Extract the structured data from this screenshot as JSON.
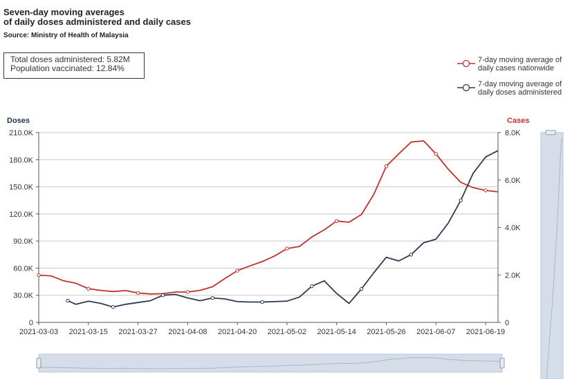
{
  "title_line1": "Seven-day moving averages",
  "title_line2": "of daily doses administered and daily cases",
  "source": "Source: Ministry of Health of Malaysia",
  "stats": {
    "total_doses": "Total doses administered: 5.82M",
    "population_vaccinated": "Population vaccinated: 12.84%"
  },
  "colors": {
    "cases": "#c0312b",
    "doses": "#2b3a4f",
    "grid": "#c8c8c8",
    "slider": "#d5dde8"
  },
  "chart_data": {
    "type": "line",
    "left_axis": {
      "label": "Doses",
      "ticks": [
        "0",
        "30.0K",
        "60.0K",
        "90.0K",
        "120.0K",
        "150.0K",
        "180.0K",
        "210.0K"
      ],
      "range": [
        0,
        210000
      ]
    },
    "right_axis": {
      "label": "Cases",
      "ticks": [
        "0",
        "2.0K",
        "4.0K",
        "6.0K",
        "8.0K"
      ],
      "range": [
        0,
        8000
      ]
    },
    "x_ticks": [
      "2021-03-03",
      "2021-03-15",
      "2021-03-27",
      "2021-04-08",
      "2021-04-20",
      "2021-05-02",
      "2021-05-14",
      "2021-05-26",
      "2021-06-07",
      "2021-06-19"
    ],
    "x_range": [
      "2021-03-03",
      "2021-06-22"
    ],
    "legend": {
      "position": "top-right",
      "entries": [
        "7-day moving average of daily cases nationwide",
        "7-day moving average of daily doses administered"
      ]
    },
    "grid": true,
    "series": [
      {
        "name": "7-day moving average of daily cases nationwide",
        "axis": "right",
        "points": [
          [
            "2021-03-03",
            1990
          ],
          [
            "2021-03-06",
            1960
          ],
          [
            "2021-03-09",
            1750
          ],
          [
            "2021-03-12",
            1650
          ],
          [
            "2021-03-15",
            1420
          ],
          [
            "2021-03-18",
            1350
          ],
          [
            "2021-03-21",
            1300
          ],
          [
            "2021-03-24",
            1340
          ],
          [
            "2021-03-27",
            1240
          ],
          [
            "2021-03-30",
            1200
          ],
          [
            "2021-04-02",
            1210
          ],
          [
            "2021-04-05",
            1280
          ],
          [
            "2021-04-08",
            1280
          ],
          [
            "2021-04-11",
            1350
          ],
          [
            "2021-04-14",
            1500
          ],
          [
            "2021-04-17",
            1850
          ],
          [
            "2021-04-20",
            2180
          ],
          [
            "2021-04-23",
            2380
          ],
          [
            "2021-04-26",
            2560
          ],
          [
            "2021-04-29",
            2800
          ],
          [
            "2021-05-02",
            3110
          ],
          [
            "2021-05-05",
            3200
          ],
          [
            "2021-05-08",
            3600
          ],
          [
            "2021-05-11",
            3900
          ],
          [
            "2021-05-14",
            4270
          ],
          [
            "2021-05-17",
            4220
          ],
          [
            "2021-05-20",
            4550
          ],
          [
            "2021-05-23",
            5400
          ],
          [
            "2021-05-26",
            6580
          ],
          [
            "2021-05-29",
            7100
          ],
          [
            "2021-06-01",
            7600
          ],
          [
            "2021-06-04",
            7650
          ],
          [
            "2021-06-07",
            7100
          ],
          [
            "2021-06-10",
            6450
          ],
          [
            "2021-06-13",
            5900
          ],
          [
            "2021-06-16",
            5680
          ],
          [
            "2021-06-19",
            5560
          ],
          [
            "2021-06-22",
            5500
          ]
        ]
      },
      {
        "name": "7-day moving average of daily doses administered",
        "axis": "left",
        "points": [
          [
            "2021-03-10",
            24000
          ],
          [
            "2021-03-12",
            20000
          ],
          [
            "2021-03-15",
            23500
          ],
          [
            "2021-03-18",
            21000
          ],
          [
            "2021-03-21",
            17000
          ],
          [
            "2021-03-24",
            20000
          ],
          [
            "2021-03-27",
            22000
          ],
          [
            "2021-03-30",
            24000
          ],
          [
            "2021-04-02",
            30000
          ],
          [
            "2021-04-05",
            31000
          ],
          [
            "2021-04-08",
            27000
          ],
          [
            "2021-04-11",
            24000
          ],
          [
            "2021-04-14",
            27000
          ],
          [
            "2021-04-17",
            26000
          ],
          [
            "2021-04-20",
            23000
          ],
          [
            "2021-04-23",
            22500
          ],
          [
            "2021-04-26",
            22500
          ],
          [
            "2021-04-29",
            23000
          ],
          [
            "2021-05-02",
            23500
          ],
          [
            "2021-05-05",
            28000
          ],
          [
            "2021-05-08",
            40000
          ],
          [
            "2021-05-11",
            46000
          ],
          [
            "2021-05-14",
            32000
          ],
          [
            "2021-05-17",
            21000
          ],
          [
            "2021-05-20",
            37000
          ],
          [
            "2021-05-23",
            55000
          ],
          [
            "2021-05-26",
            72000
          ],
          [
            "2021-05-29",
            68000
          ],
          [
            "2021-06-01",
            75000
          ],
          [
            "2021-06-04",
            88000
          ],
          [
            "2021-06-07",
            92000
          ],
          [
            "2021-06-10",
            110000
          ],
          [
            "2021-06-13",
            135000
          ],
          [
            "2021-06-16",
            165000
          ],
          [
            "2021-06-19",
            183000
          ],
          [
            "2021-06-22",
            190000
          ]
        ]
      }
    ]
  }
}
